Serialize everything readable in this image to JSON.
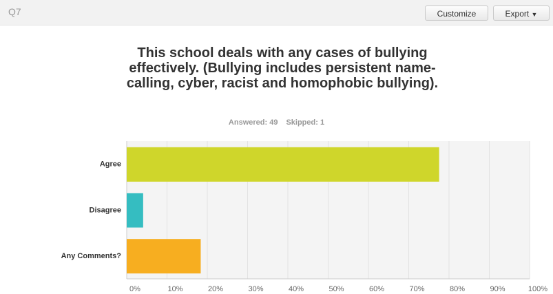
{
  "header": {
    "question": "Q7",
    "buttons": [
      "Customize",
      "Export"
    ]
  },
  "chart_data": {
    "type": "hbar",
    "title": "This school deals with any cases of bullying effectively. (Bullying includes persistent name-calling, cyber, racist and homophobic bullying).",
    "answered": "Answered: 49",
    "skipped": "Skipped: 1",
    "categories": [
      "Agree",
      "Disagree",
      "Any Comments?"
    ],
    "values": [
      77.55,
      4.08,
      18.37
    ],
    "colors": [
      "#cfd62b",
      "#35bdc1",
      "#f7ae20"
    ],
    "xlim": [
      0,
      100
    ],
    "xticks": [
      {
        "value": 0,
        "label": "0%"
      },
      {
        "value": 10,
        "label": "10%"
      },
      {
        "value": 20,
        "label": "20%"
      },
      {
        "value": 30,
        "label": "30%"
      },
      {
        "value": 40,
        "label": "40%"
      },
      {
        "value": 50,
        "label": "50%"
      },
      {
        "value": 60,
        "label": "60%"
      },
      {
        "value": 70,
        "label": "70%"
      },
      {
        "value": 80,
        "label": "80%"
      },
      {
        "value": 90,
        "label": "90%"
      },
      {
        "value": 100,
        "label": "100%"
      }
    ],
    "grid": true
  }
}
